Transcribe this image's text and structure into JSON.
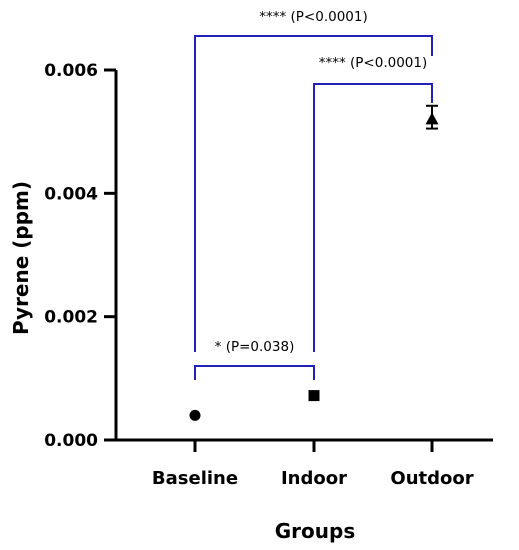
{
  "chart_data": {
    "type": "scatter",
    "xlabel": "Groups",
    "ylabel": "Pyrene (ppm)",
    "ylim": [
      0,
      0.006
    ],
    "yticks": [
      "0.000",
      "0.002",
      "0.004",
      "0.006"
    ],
    "categories": [
      "Baseline",
      "Indoor",
      "Outdoor"
    ],
    "points": [
      {
        "category": "Baseline",
        "value": 0.0004,
        "marker": "circle"
      },
      {
        "category": "Indoor",
        "value": 0.00072,
        "marker": "square"
      },
      {
        "category": "Outdoor",
        "value": 0.0052,
        "marker": "triangle",
        "error_low": 0.00505,
        "error_high": 0.00542
      }
    ],
    "annotations": [
      {
        "from": "Baseline",
        "to": "Outdoor",
        "label": "**** (P<0.0001)"
      },
      {
        "from": "Indoor",
        "to": "Outdoor",
        "label": "**** (P<0.0001)"
      },
      {
        "from": "Baseline",
        "to": "Indoor",
        "label": "* (P=0.038)"
      }
    ],
    "axis_color": "#000000",
    "bracket_color": "#2222bb",
    "marker_color": "#000000"
  }
}
